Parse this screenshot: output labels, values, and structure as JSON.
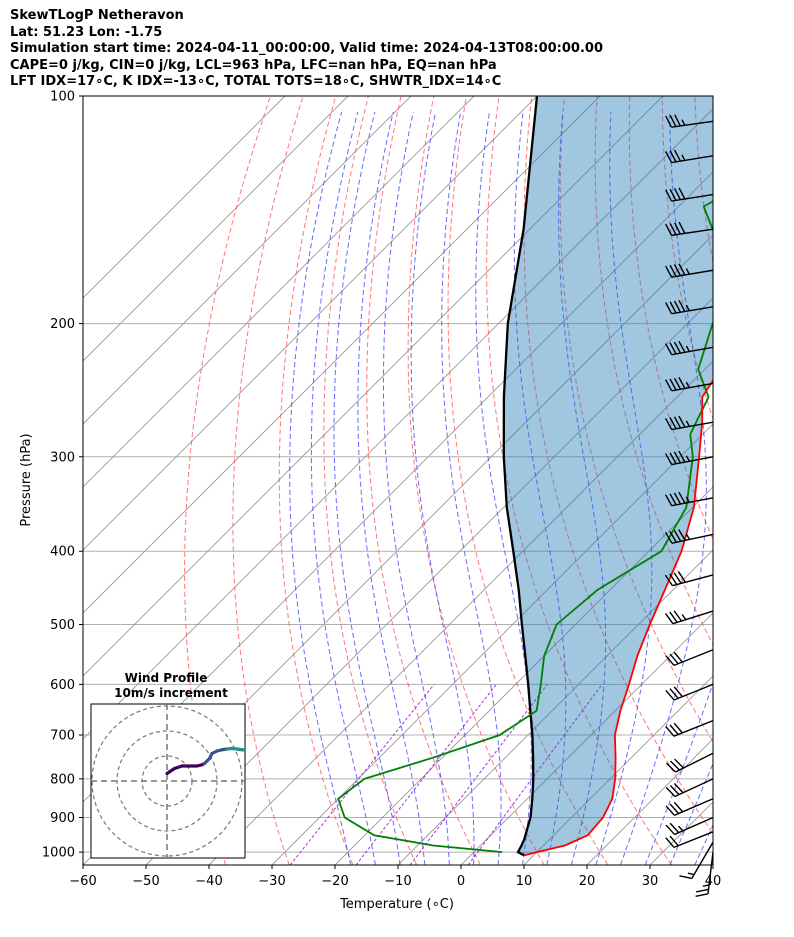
{
  "header": {
    "line1": "SkewTLogP Netheravon",
    "line2": "Lat: 51.23   Lon: -1.75",
    "line3": "Simulation start time: 2024-04-11_00:00:00, Valid time: 2024-04-13T08:00:00.00",
    "line4": "CAPE=0 j/kg, CIN=0 j/kg, LCL=963 hPa, LFC=nan hPa, EQ=nan hPa",
    "line5": "LFT IDX=17∘C, K IDX=-13∘C, TOTAL TOTS=18∘C, SHWTR_IDX=14∘C"
  },
  "chart_data": [
    {
      "type": "line",
      "subtype": "skew-t log-p",
      "xlabel": "Temperature (∘C)",
      "ylabel": "Pressure (hPa)",
      "xlim": [
        -60,
        40
      ],
      "ylim": [
        1040,
        100
      ],
      "y_scale": "log",
      "x_ticks": [
        -60,
        -50,
        -40,
        -30,
        -20,
        -10,
        0,
        10,
        20,
        30,
        40
      ],
      "x_tick_labels": [
        "−60",
        "−50",
        "−40",
        "−30",
        "−20",
        "−10",
        "0",
        "10",
        "20",
        "30",
        "40"
      ],
      "y_ticks": [
        1000,
        900,
        800,
        700,
        600,
        500,
        400,
        300,
        200,
        100
      ],
      "y_tick_labels": [
        "1000",
        "900",
        "800",
        "700",
        "600",
        "500",
        "400",
        "300",
        "200",
        "100"
      ],
      "grid": true,
      "colors": {
        "temperature": "#ff0000",
        "dewpoint": "#008000",
        "parcel": "#000000",
        "cape_fill": "#1f77b4",
        "isotherm": "#999999",
        "dry_adiabat": "#ff5555",
        "moist_adiabat": "#4444ff",
        "mixing_ratio": "#9400d3",
        "wind_barb": "#000000"
      },
      "series": [
        {
          "key": "temperature",
          "p": [
            1010,
            1000,
            980,
            950,
            900,
            850,
            800,
            750,
            700,
            650,
            600,
            550,
            500,
            450,
            400,
            350,
            300,
            270,
            250,
            230,
            200,
            185,
            170,
            155,
            140,
            130,
            120,
            110,
            100
          ],
          "t": [
            8.5,
            10,
            13.4,
            15.4,
            15.0,
            13.5,
            10.8,
            7.5,
            3.8,
            0.8,
            -2.0,
            -5.2,
            -8.2,
            -11.3,
            -14.8,
            -19.8,
            -27.0,
            -32.0,
            -36.0,
            -37.5,
            -40.5,
            -40.5,
            -38.5,
            -34.0,
            -27.0,
            -26.0,
            -29.0,
            -32.0,
            -35.0
          ]
        },
        {
          "key": "dewpoint",
          "p": [
            1000,
            980,
            950,
            900,
            850,
            800,
            750,
            700,
            650,
            600,
            550,
            500,
            450,
            400,
            350,
            300,
            280,
            250,
            230,
            200,
            185,
            170,
            160,
            150,
            140,
            130,
            120,
            110,
            100
          ],
          "t": [
            4.5,
            -7.5,
            -18.5,
            -26.0,
            -30.0,
            -29.0,
            -21.5,
            -14.5,
            -12.5,
            -16.0,
            -20.0,
            -23.0,
            -22.0,
            -18.0,
            -21.0,
            -28.0,
            -32.0,
            -35.0,
            -41.0,
            -46.0,
            -48.0,
            -51.0,
            -56.0,
            -61.0,
            -66.0,
            -63.0,
            -57.0,
            -51.0,
            -46.0
          ]
        },
        {
          "key": "parcel",
          "p": [
            1010,
            1000,
            980,
            963,
            900,
            850,
            800,
            750,
            700,
            650,
            600,
            550,
            500,
            450,
            400,
            350,
            300,
            250,
            200,
            150,
            100
          ],
          "t": [
            8.5,
            7.0,
            6.5,
            6.0,
            3.5,
            0.8,
            -2.2,
            -5.6,
            -9.3,
            -13.5,
            -18.0,
            -23.0,
            -28.5,
            -34.5,
            -41.5,
            -49.5,
            -58.0,
            -67.5,
            -78.5,
            -91.0,
            -110.0
          ]
        }
      ],
      "wind_barbs": [
        {
          "p": 1000,
          "u": 3,
          "v": 25
        },
        {
          "p": 970,
          "u": 7,
          "v": 12
        },
        {
          "p": 940,
          "u": 20,
          "v": 8
        },
        {
          "p": 900,
          "u": 25,
          "v": 11
        },
        {
          "p": 850,
          "u": 28,
          "v": 12
        },
        {
          "p": 800,
          "u": 28,
          "v": 13
        },
        {
          "p": 740,
          "u": 28,
          "v": 14
        },
        {
          "p": 670,
          "u": 30,
          "v": 12
        },
        {
          "p": 600,
          "u": 30,
          "v": 12
        },
        {
          "p": 540,
          "u": 30,
          "v": 12
        },
        {
          "p": 480,
          "u": 35,
          "v": 11
        },
        {
          "p": 430,
          "u": 38,
          "v": 10
        },
        {
          "p": 380,
          "u": 42,
          "v": 9
        },
        {
          "p": 340,
          "u": 42,
          "v": 8
        },
        {
          "p": 300,
          "u": 42,
          "v": 8
        },
        {
          "p": 270,
          "u": 45,
          "v": 8
        },
        {
          "p": 240,
          "u": 45,
          "v": 8
        },
        {
          "p": 215,
          "u": 45,
          "v": 8
        },
        {
          "p": 190,
          "u": 42,
          "v": 7
        },
        {
          "p": 170,
          "u": 42,
          "v": 7
        },
        {
          "p": 150,
          "u": 40,
          "v": 6
        },
        {
          "p": 135,
          "u": 38,
          "v": 6
        },
        {
          "p": 120,
          "u": 37,
          "v": 6
        },
        {
          "p": 108,
          "u": 35,
          "v": 5
        }
      ]
    },
    {
      "type": "line",
      "subtype": "hodograph",
      "title": "Wind Profile",
      "subtitle": "10m/s increment",
      "ring_step": 10,
      "ring_count": 3,
      "colormap": [
        "#440154",
        "#3b528b",
        "#21918c",
        "#5ec962",
        "#fde725"
      ],
      "u": [
        0,
        3,
        6,
        9,
        12,
        14,
        15,
        16,
        17,
        18,
        20,
        22,
        24,
        26,
        28,
        30,
        32,
        34,
        36,
        38,
        40,
        42,
        44,
        45,
        45,
        45
      ],
      "v": [
        3,
        5,
        6,
        6,
        6,
        6.5,
        7,
        8,
        9,
        11,
        12,
        12.5,
        12.8,
        13,
        12.8,
        12.5,
        12.3,
        12,
        12,
        11.8,
        11.8,
        11.5,
        11.5,
        11.5,
        11,
        10
      ]
    }
  ]
}
